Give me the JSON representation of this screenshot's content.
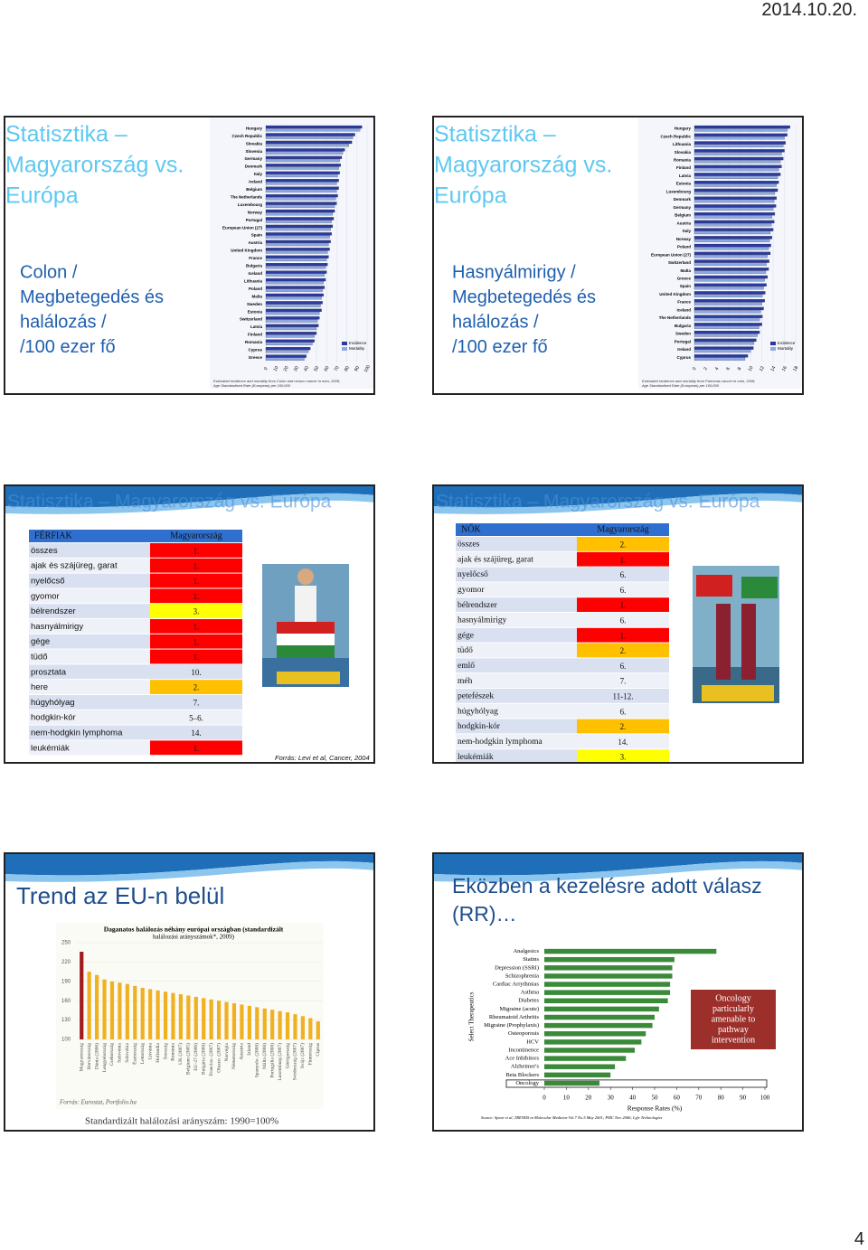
{
  "header": {
    "date": "2014.10.20."
  },
  "footer": {
    "page": "4"
  },
  "slides": [
    {
      "title": [
        "Statisztika –",
        "Magyarország vs.",
        "Európa"
      ],
      "subtitle": [
        "Colon /",
        "Megbetegedés és",
        "halálozás /",
        "/100 ezer fő"
      ],
      "chart": {
        "type": "hbar",
        "categories": [
          "Hungary",
          "Czech Republic",
          "Slovakia",
          "Slovenia",
          "Germany",
          "Denmark",
          "Italy",
          "Ireland",
          "Belgium",
          "The Netherlands",
          "Luxembourg",
          "Norway",
          "Portugal",
          "European Union (27)",
          "Spain",
          "Austria",
          "United Kingdom",
          "France",
          "Bulgaria",
          "Iceland",
          "Lithuania",
          "Poland",
          "Malta",
          "Sweden",
          "Estonia",
          "Switzerland",
          "Latvia",
          "Finland",
          "Romania",
          "Cyprus",
          "Greece"
        ],
        "series": [
          {
            "name": "Incidence",
            "color": "#2b3a9c",
            "values": [
              95,
              88,
              85,
              78,
              75,
              74,
              73,
              72,
              72,
              71,
              70,
              68,
              67,
              66,
              65,
              64,
              63,
              62,
              61,
              60,
              59,
              58,
              57,
              56,
              55,
              53,
              52,
              50,
              48,
              44,
              40
            ]
          },
          {
            "name": "Mortality",
            "color": "#8fa8e0",
            "values": [
              93,
              86,
              82,
              76,
              73,
              72,
              71,
              70,
              70,
              69,
              68,
              66,
              65,
              64,
              63,
              62,
              61,
              60,
              59,
              58,
              57,
              56,
              55,
              54,
              53,
              51,
              50,
              48,
              46,
              42,
              38
            ]
          }
        ],
        "xlim": [
          0,
          100
        ],
        "xticks": [
          0,
          10,
          20,
          30,
          40,
          50,
          60,
          70,
          80,
          90,
          100
        ],
        "note": [
          "Estimated incidence and mortality from Colon and rectum cancer in men, 2008;",
          "Age Standardised Rate (European) per 100,000"
        ]
      }
    },
    {
      "title": [
        "Statisztika –",
        "Magyarország vs.",
        "Európa"
      ],
      "subtitle": [
        "Hasnyálmirigy /",
        "Megbetegedés és",
        "halálozás /",
        "/100 ezer fő"
      ],
      "chart": {
        "type": "hbar",
        "categories": [
          "Hungary",
          "Czech Republic",
          "Lithuania",
          "Slovakia",
          "Romania",
          "Finland",
          "Latvia",
          "Estonia",
          "Luxembourg",
          "Denmark",
          "Germany",
          "Belgium",
          "Austria",
          "Italy",
          "Norway",
          "Poland",
          "European Union (27)",
          "Switzerland",
          "Malta",
          "Greece",
          "Spain",
          "United Kingdom",
          "France",
          "Iceland",
          "The Netherlands",
          "Bulgaria",
          "Sweden",
          "Portugal",
          "Ireland",
          "Cyprus"
        ],
        "series": [
          {
            "name": "Incidence",
            "color": "#2b3a9c",
            "values": [
              17,
              16.5,
              16.2,
              16,
              15.8,
              15.5,
              15.3,
              15,
              14.8,
              14.6,
              14.5,
              14.3,
              14.2,
              14,
              13.8,
              13.6,
              13.5,
              13.3,
              13.2,
              13,
              12.8,
              12.6,
              12.5,
              12.3,
              12.1,
              12,
              11.6,
              11,
              10.5,
              9.5
            ]
          },
          {
            "name": "Mortality",
            "color": "#8fa8e0",
            "values": [
              16.5,
              16,
              15.8,
              15.5,
              15.3,
              15,
              14.8,
              14.6,
              14.3,
              14.2,
              14,
              13.8,
              13.7,
              13.5,
              13.4,
              13.2,
              13,
              12.8,
              12.7,
              12.5,
              12.3,
              12.1,
              12,
              11.8,
              11.6,
              11.5,
              11.2,
              10.6,
              10,
              9
            ]
          }
        ],
        "xlim": [
          0,
          18
        ],
        "xticks": [
          0,
          2,
          4,
          6,
          8,
          10,
          12,
          14,
          16,
          18
        ],
        "note": [
          "Estimated incidence and mortality from Pancreas cancer in men, 2008;",
          "Age Standardised Rate (European) per 100,000"
        ]
      }
    },
    {
      "title": [
        "Statisztika – Magyarország vs. Európa"
      ],
      "table": {
        "header": [
          "FÉRFIAK",
          "Magyarország"
        ],
        "rows": [
          {
            "label": "összes",
            "rank": "1.",
            "color": "#ff0000"
          },
          {
            "label": "ajak és szájüreg, garat",
            "rank": "1.",
            "color": "#ff0000"
          },
          {
            "label": "nyelőcső",
            "rank": "1.",
            "color": "#ff0000"
          },
          {
            "label": "gyomor",
            "rank": "1.",
            "color": "#ff0000"
          },
          {
            "label": "bélrendszer",
            "rank": "3.",
            "color": "#ffff00"
          },
          {
            "label": "hasnyálmirigy",
            "rank": "1.",
            "color": "#ff0000"
          },
          {
            "label": "gége",
            "rank": "1.",
            "color": "#ff0000"
          },
          {
            "label": "tüdő",
            "rank": "1.",
            "color": "#ff0000"
          },
          {
            "label": "prosztata",
            "rank": "10."
          },
          {
            "label": "here",
            "rank": "2.",
            "color": "#ffc000"
          },
          {
            "label": "húgyhólyag",
            "rank": "7."
          },
          {
            "label": "hodgkin-kór",
            "rank": "5–6."
          },
          {
            "label": "nem-hodgkin lymphoma",
            "rank": "14."
          },
          {
            "label": "leukémiák",
            "rank": "1.",
            "color": "#ff0000"
          }
        ]
      },
      "source": "Forrás: Levi et al, Cancer, 2004"
    },
    {
      "title": [
        "Statisztika – Magyarország vs. Európa"
      ],
      "table": {
        "header": [
          "NŐK",
          "Magyarország"
        ],
        "rows": [
          {
            "label": "összes",
            "rank": "2.",
            "color": "#ffc000"
          },
          {
            "label": "ajak és szájüreg, garat",
            "rank": "1.",
            "color": "#ff0000"
          },
          {
            "label": "nyelőcső",
            "rank": "6."
          },
          {
            "label": "gyomor",
            "rank": "6."
          },
          {
            "label": "bélrendszer",
            "rank": "1.",
            "color": "#ff0000"
          },
          {
            "label": "hasnyálmirigy",
            "rank": "6."
          },
          {
            "label": "gége",
            "rank": "1.",
            "color": "#ff0000"
          },
          {
            "label": "tüdő",
            "rank": "2.",
            "color": "#ffc000"
          },
          {
            "label": "emlő",
            "rank": "6."
          },
          {
            "label": "méh",
            "rank": "7."
          },
          {
            "label": "petefészek",
            "rank": "11-12."
          },
          {
            "label": "húgyhólyag",
            "rank": "6."
          },
          {
            "label": "hodgkin-kór",
            "rank": "2.",
            "color": "#ffc000"
          },
          {
            "label": "nem-hodgkin lymphoma",
            "rank": "14."
          },
          {
            "label": "leukémiák",
            "rank": "3.",
            "color": "#ffff00"
          }
        ]
      }
    },
    {
      "title": [
        "Trend az EU-n belül"
      ],
      "chart": {
        "type": "vbar",
        "title": [
          "Daganatos halálozás néhány európai országban (standardizált",
          "halálozási arányszámok*, 2009)"
        ],
        "categories": [
          "Magyarország",
          "Horvátország",
          "Dánia (2006)",
          "Lengyelország",
          "Csehország",
          "Szlovénia",
          "Szlovákia",
          "Észtország",
          "Lettország",
          "Litvánia",
          "Hollandia",
          "Írország",
          "Románia",
          "UK (2007)",
          "Belgium (2005)",
          "EU-27 (2006)",
          "Bulgária (2008)",
          "Franciao. (2007)",
          "Olaszo. (2007)",
          "Norvégia",
          "Németország",
          "Ausztria",
          "Izland",
          "Spanyolo. (2008)",
          "Málta (2008)",
          "Portugália (2008)",
          "Luxemburg (2007)",
          "Görögország",
          "Svédország (2007)",
          "Svájc (2007)",
          "Finnország",
          "Ciprus"
        ],
        "values": [
          236,
          205,
          200,
          193,
          190,
          188,
          186,
          183,
          180,
          178,
          176,
          174,
          172,
          170,
          168,
          166,
          164,
          162,
          160,
          158,
          156,
          154,
          152,
          150,
          148,
          146,
          144,
          142,
          139,
          136,
          133,
          128
        ],
        "colors": [
          "#a01c1c",
          "#f0b020"
        ],
        "ylim": [
          100,
          250
        ],
        "yticks": [
          100,
          130,
          160,
          190,
          220,
          250
        ],
        "source": "Forrás: Eurostat, Portfolio.hu"
      },
      "footnote": "Standardizált halálozási arányszám: 1990=100%"
    },
    {
      "title": [
        "Eközben a kezelésre adott válasz",
        "(RR)…"
      ],
      "chart": {
        "type": "hbar1",
        "categories": [
          "Analgesics",
          "Statins",
          "Depression (SSRI)",
          "Schizophrenia",
          "Cardiac Arrythmias",
          "Asthma",
          "Diabetes",
          "Migraine (acute)",
          "Rheumatoid Arthritis",
          "Migraine (Prophylaxis)",
          "Osteoporosis",
          "HCV",
          "Incontinence",
          "Ace Inhibitors",
          "Alzheimer's",
          "Beta Blockers",
          "Oncology"
        ],
        "values": [
          78,
          59,
          58,
          58,
          57,
          57,
          56,
          52,
          50,
          49,
          46,
          44,
          41,
          37,
          32,
          30,
          25
        ],
        "color": "#3a8a3a",
        "xlim": [
          0,
          100
        ],
        "xticks": [
          0,
          10,
          20,
          30,
          40,
          50,
          60,
          70,
          80,
          90,
          100
        ],
        "xlabel": "Response Rates (%)",
        "ylabel": "Select Therapeutics",
        "box": [
          "Oncology",
          "particularly",
          "amenable to",
          "pathway",
          "intervention"
        ],
        "source": "Source: Spear et al, TRENDS in Molecular Medicine Vol.7 No.5 May 2001; PMC Nov 2006; Lyfe Technologies"
      }
    }
  ]
}
